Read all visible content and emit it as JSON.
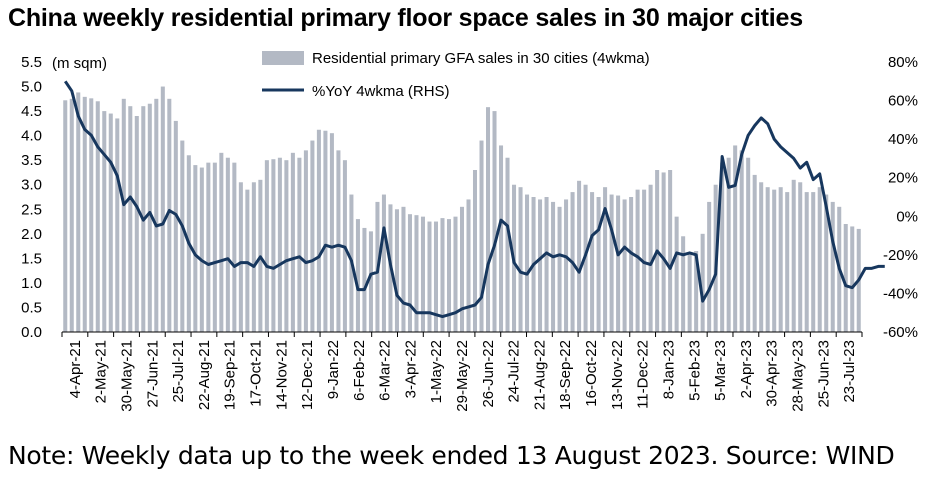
{
  "title": "China weekly residential primary floor space sales in 30 major cities",
  "note": "Note: Weekly data up to the week ended 13 August 2023. Source: WIND",
  "chart_data": {
    "type": "bar+line",
    "ylabel": "(m sqm)",
    "ylim": [
      0,
      5.5
    ],
    "yticks": [
      "0.0",
      "0.5",
      "1.0",
      "1.5",
      "2.0",
      "2.5",
      "3.0",
      "3.5",
      "4.0",
      "4.5",
      "5.0",
      "5.5"
    ],
    "y2lim": [
      -60,
      80
    ],
    "y2ticks": [
      "-60%",
      "-40%",
      "-20%",
      "0%",
      "20%",
      "40%",
      "60%",
      "80%"
    ],
    "x_labels": [
      "4-Apr-21",
      "2-May-21",
      "30-May-21",
      "27-Jun-21",
      "25-Jul-21",
      "22-Aug-21",
      "19-Sep-21",
      "17-Oct-21",
      "14-Nov-21",
      "12-Dec-21",
      "9-Jan-22",
      "6-Feb-22",
      "6-Mar-22",
      "3-Apr-22",
      "1-May-22",
      "29-May-22",
      "26-Jun-22",
      "24-Jul-22",
      "21-Aug-22",
      "18-Sep-22",
      "16-Oct-22",
      "13-Nov-22",
      "11-Dec-22",
      "8-Jan-23",
      "5-Feb-23",
      "5-Mar-23",
      "2-Apr-23",
      "30-Apr-23",
      "28-May-23",
      "25-Jun-23",
      "23-Jul-23"
    ],
    "legend": {
      "placement": "top-center"
    },
    "series": [
      {
        "name": "Residential primary GFA sales in 30 cities (4wkma)",
        "type": "bar",
        "axis": "left",
        "color": "#b3b9c4",
        "values": [
          4.72,
          4.75,
          4.88,
          4.79,
          4.76,
          4.7,
          4.5,
          4.45,
          4.35,
          4.75,
          4.6,
          4.4,
          4.6,
          4.65,
          4.75,
          5.0,
          4.75,
          4.3,
          3.9,
          3.6,
          3.4,
          3.35,
          3.45,
          3.45,
          3.65,
          3.55,
          3.45,
          3.05,
          2.9,
          3.05,
          3.1,
          3.5,
          3.52,
          3.55,
          3.5,
          3.65,
          3.55,
          3.7,
          3.9,
          4.12,
          4.1,
          4.05,
          3.7,
          3.5,
          2.8,
          2.3,
          2.12,
          2.05,
          2.65,
          2.8,
          2.6,
          2.5,
          2.55,
          2.4,
          2.38,
          2.35,
          2.25,
          2.25,
          2.32,
          2.3,
          2.35,
          2.55,
          2.7,
          3.3,
          3.9,
          4.58,
          4.5,
          3.8,
          3.55,
          3.0,
          2.95,
          2.8,
          2.75,
          2.7,
          2.75,
          2.65,
          2.55,
          2.7,
          2.85,
          3.08,
          3.0,
          2.85,
          2.75,
          2.95,
          2.8,
          2.78,
          2.7,
          2.75,
          2.9,
          2.9,
          3.0,
          3.3,
          3.25,
          3.3,
          2.35,
          1.95,
          1.62,
          1.65,
          2.0,
          2.65,
          3.0,
          3.45,
          3.55,
          3.8,
          3.7,
          3.55,
          3.2,
          3.05,
          2.95,
          2.9,
          2.95,
          2.85,
          3.1,
          3.05,
          2.85,
          2.85,
          2.95,
          2.8,
          2.65,
          2.55,
          2.2,
          2.15,
          2.1
        ]
      },
      {
        "name": "%YoY 4wkma (RHS)",
        "type": "line",
        "axis": "right",
        "color": "#17375e",
        "values": [
          70,
          65,
          52,
          45,
          42,
          36,
          32,
          28,
          21,
          6,
          10,
          5,
          -2,
          2,
          -5,
          -4,
          3,
          1,
          -5,
          -14,
          -20,
          -23,
          -25,
          -24,
          -23,
          -22,
          -26,
          -24,
          -24,
          -26,
          -21,
          -26,
          -27,
          -25,
          -23,
          -22,
          -21,
          -24,
          -23,
          -21,
          -15,
          -16,
          -15,
          -16,
          -23,
          -38,
          -38,
          -30,
          -29,
          -6,
          -25,
          -41,
          -45,
          -46,
          -50,
          -50,
          -50,
          -51,
          -52,
          -51,
          -50,
          -48,
          -47,
          -46,
          -42,
          -25,
          -15,
          -2,
          -5,
          -24,
          -29,
          -30,
          -25,
          -22,
          -19,
          -21,
          -20,
          -21,
          -24,
          -29,
          -20,
          -10,
          -7,
          4,
          -7,
          -20,
          -16,
          -19,
          -21,
          -24,
          -25,
          -18,
          -22,
          -27,
          -19,
          -20,
          -19,
          -20,
          -44,
          -38,
          -30,
          31,
          15,
          16,
          32,
          42,
          47,
          51,
          48,
          40,
          36,
          33,
          30,
          25,
          28,
          19,
          22,
          5,
          -13,
          -27,
          -36,
          -37,
          -33,
          -27,
          -27,
          -26,
          -26
        ]
      }
    ]
  }
}
